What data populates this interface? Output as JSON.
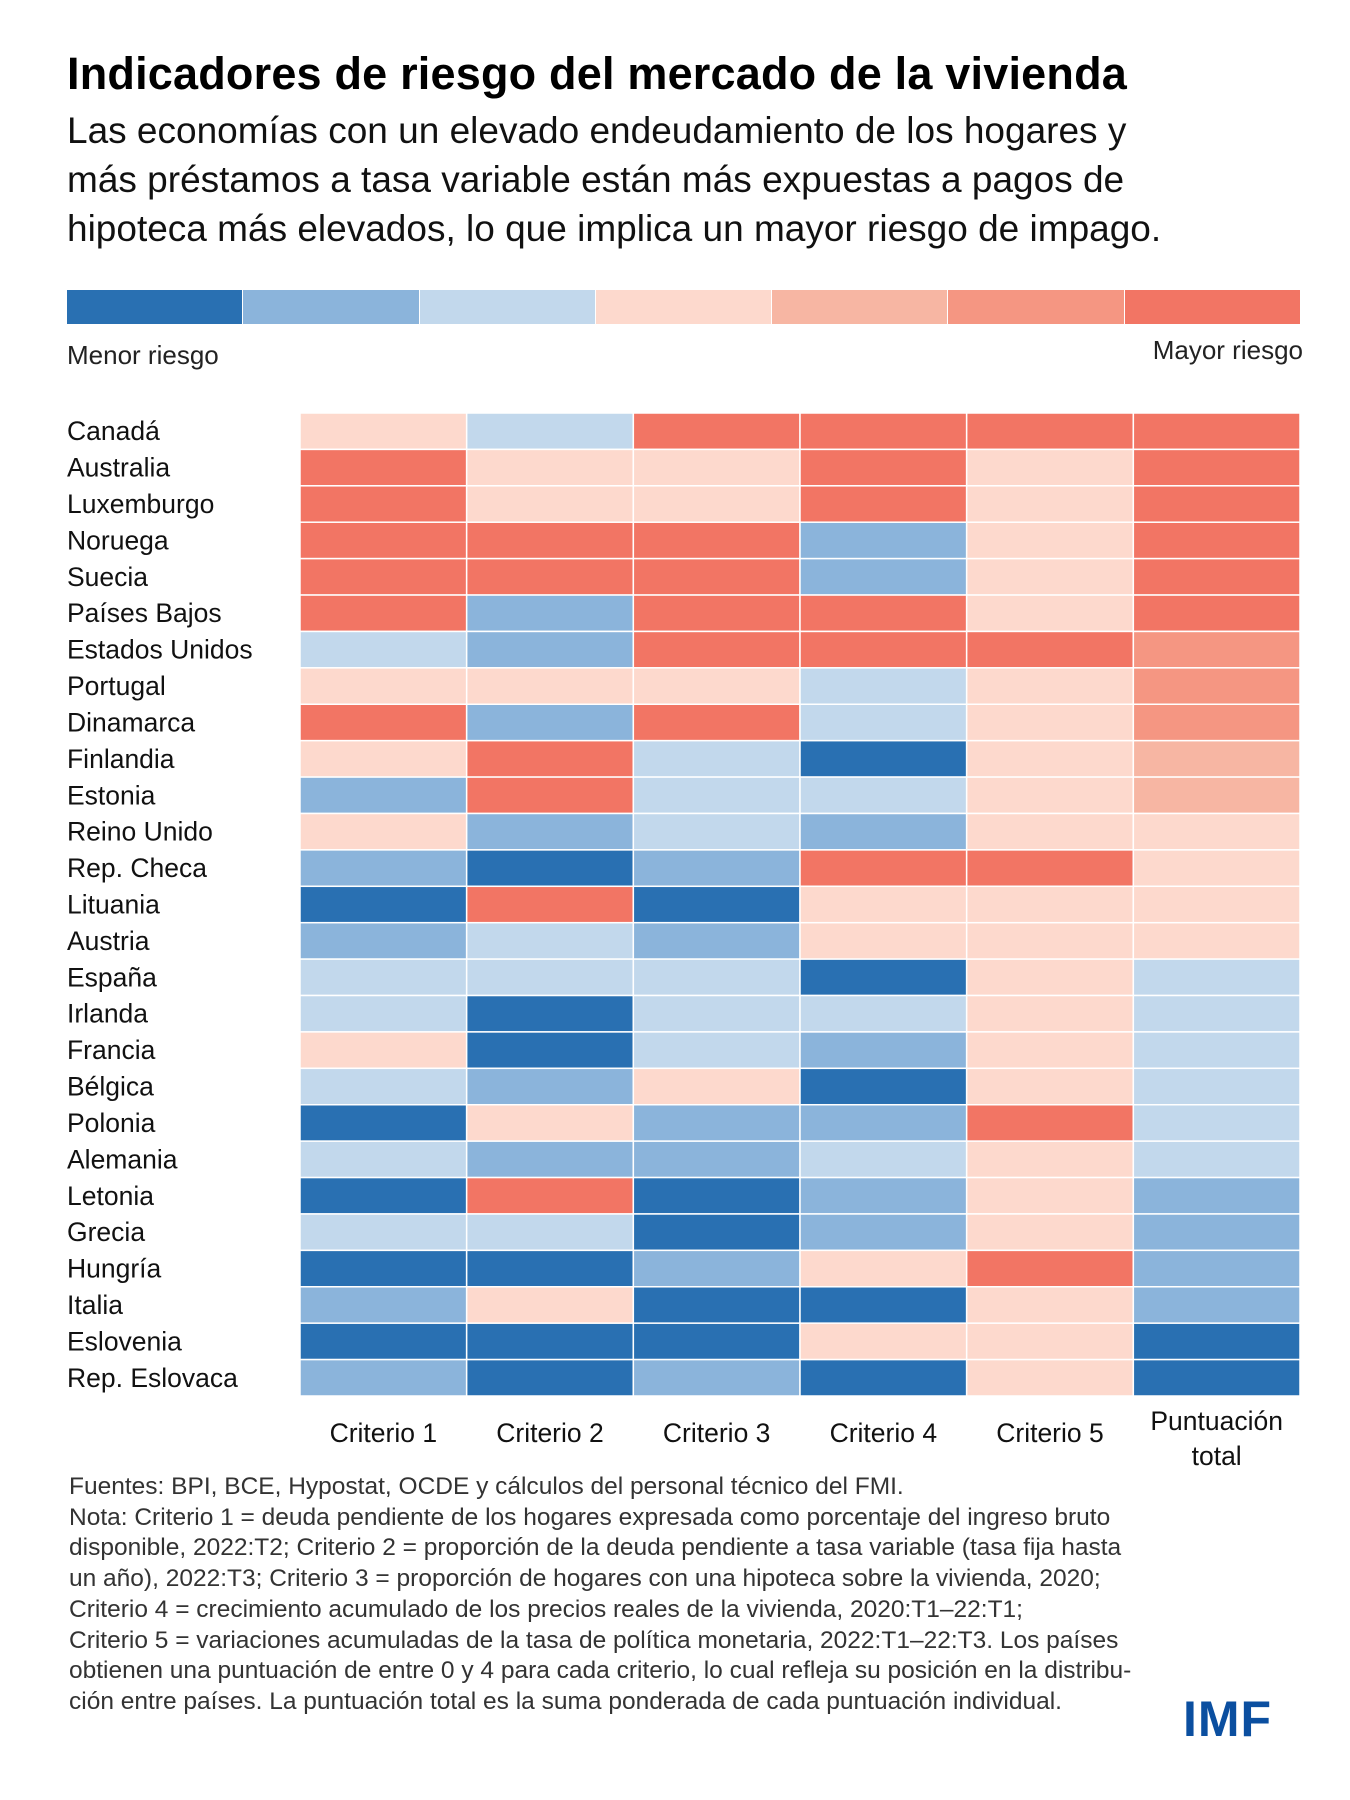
{
  "header": {
    "title": "Indicadores de riesgo del mercado de la vivienda",
    "subtitle_lines": [
      "Las economías con un elevado endeudamiento de los hogares y",
      "más préstamos a tasa variable están más expuestas a pagos de",
      "hipoteca más elevados, lo que implica un mayor riesgo de impago."
    ]
  },
  "legend": {
    "low_label": "Menor riesgo",
    "high_label": "Mayor riesgo",
    "colors": [
      "#2970b2",
      "#8bb4db",
      "#c2d8ec",
      "#fdd9cd",
      "#f7b6a3",
      "#f59682",
      "#f27564"
    ]
  },
  "chart_data": {
    "type": "heatmap",
    "title": "Indicadores de riesgo del mercado de la vivienda",
    "xlabel": "",
    "ylabel": "",
    "columns": [
      "Criterio 1",
      "Criterio 2",
      "Criterio 3",
      "Criterio 4",
      "Criterio 5",
      "Puntuación total"
    ],
    "column_label_lines": [
      [
        "Criterio 1"
      ],
      [
        "Criterio 2"
      ],
      [
        "Criterio 3"
      ],
      [
        "Criterio 4"
      ],
      [
        "Criterio 5"
      ],
      [
        "Puntuación",
        "total"
      ]
    ],
    "rows": [
      "Canadá",
      "Australia",
      "Luxemburgo",
      "Noruega",
      "Suecia",
      "Países Bajos",
      "Estados Unidos",
      "Portugal",
      "Dinamarca",
      "Finlandia",
      "Estonia",
      "Reino Unido",
      "Rep. Checa",
      "Lituania",
      "Austria",
      "España",
      "Irlanda",
      "Francia",
      "Bélgica",
      "Polonia",
      "Alemania",
      "Letonia",
      "Grecia",
      "Hungría",
      "Italia",
      "Eslovenia",
      "Rep. Eslovaca"
    ],
    "scale_note": "Valores como nivel de color en la escala de 7 niveles (0 = menor riesgo, 6 = mayor riesgo). Criterios individuales usan niveles 0,1,2,3,6 (puntuación 0–4).",
    "values": [
      [
        3,
        2,
        6,
        6,
        6,
        6
      ],
      [
        6,
        3,
        3,
        6,
        3,
        6
      ],
      [
        6,
        3,
        3,
        6,
        3,
        6
      ],
      [
        6,
        6,
        6,
        1,
        3,
        6
      ],
      [
        6,
        6,
        6,
        1,
        3,
        6
      ],
      [
        6,
        1,
        6,
        6,
        3,
        6
      ],
      [
        2,
        1,
        6,
        6,
        6,
        5
      ],
      [
        3,
        3,
        3,
        2,
        3,
        5
      ],
      [
        6,
        1,
        6,
        2,
        3,
        5
      ],
      [
        3,
        6,
        2,
        0,
        3,
        4
      ],
      [
        1,
        6,
        2,
        2,
        3,
        4
      ],
      [
        3,
        1,
        2,
        1,
        3,
        3
      ],
      [
        1,
        0,
        1,
        6,
        6,
        3
      ],
      [
        0,
        6,
        0,
        3,
        3,
        3
      ],
      [
        1,
        2,
        1,
        3,
        3,
        3
      ],
      [
        2,
        2,
        2,
        0,
        3,
        2
      ],
      [
        2,
        0,
        2,
        2,
        3,
        2
      ],
      [
        3,
        0,
        2,
        1,
        3,
        2
      ],
      [
        2,
        1,
        3,
        0,
        3,
        2
      ],
      [
        0,
        3,
        1,
        1,
        6,
        2
      ],
      [
        2,
        1,
        1,
        2,
        3,
        2
      ],
      [
        0,
        6,
        0,
        1,
        3,
        1
      ],
      [
        2,
        2,
        0,
        1,
        3,
        1
      ],
      [
        0,
        0,
        1,
        3,
        6,
        1
      ],
      [
        1,
        3,
        0,
        0,
        3,
        1
      ],
      [
        0,
        0,
        0,
        3,
        3,
        0
      ],
      [
        1,
        0,
        1,
        0,
        3,
        0
      ]
    ],
    "color_scale": [
      "#2970b2",
      "#8bb4db",
      "#c2d8ec",
      "#fdd9cd",
      "#f7b6a3",
      "#f59682",
      "#f27564"
    ],
    "legend_position": "top"
  },
  "footnote": {
    "lines": [
      "Fuentes: BPI, BCE, Hypostat, OCDE y cálculos del personal técnico del FMI.",
      "Nota: Criterio 1 = deuda pendiente de los hogares expresada como porcentaje del ingreso bruto",
      "disponible, 2022:T2; Criterio 2 = proporción de la deuda pendiente a tasa variable (tasa fija hasta",
      "un año), 2022:T3; Criterio 3 = proporción de hogares con una hipoteca sobre la vivienda, 2020;",
      "Criterio 4 = crecimiento acumulado de los precios reales de la vivienda, 2020:T1–22:T1;",
      "Criterio 5 = variaciones acumuladas de la tasa de política monetaria, 2022:T1–22:T3. Los países",
      "obtienen una puntuación de entre 0 y 4 para cada criterio, lo cual refleja su posición en la distribu-",
      "ción entre países. La puntuación total es la suma ponderada de cada puntuación individual."
    ]
  },
  "logo": {
    "text": "IMF",
    "color": "#0b4fa0"
  }
}
